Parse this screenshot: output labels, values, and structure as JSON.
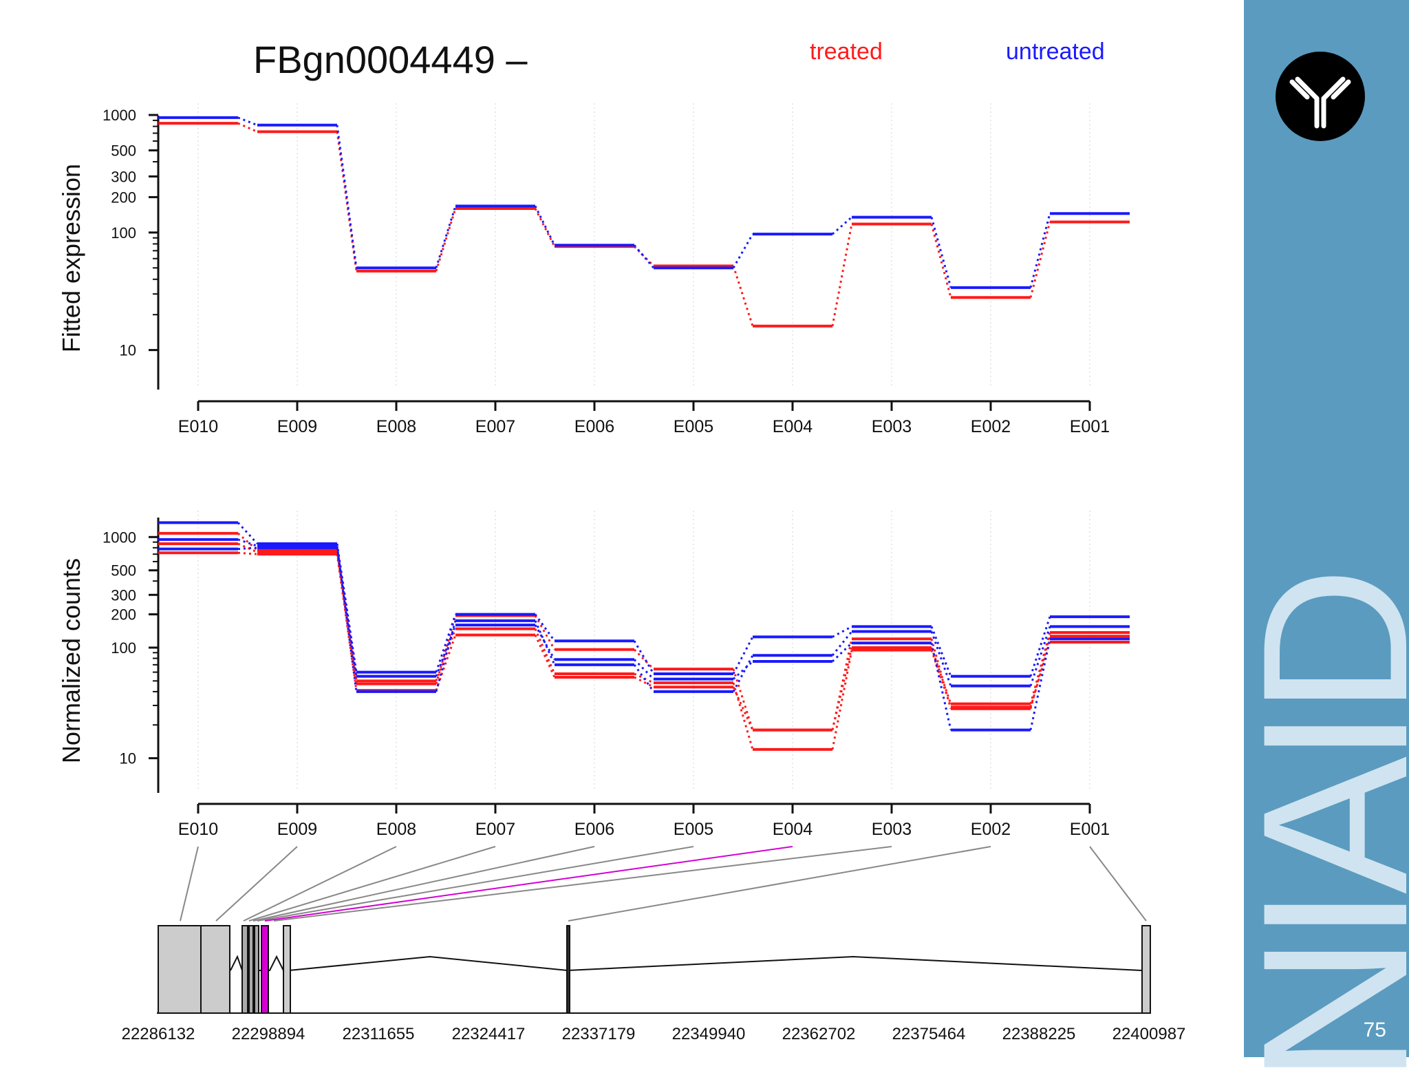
{
  "slide": {
    "number": "75",
    "org_text": "NIAID"
  },
  "colors": {
    "treated": "#ff1a1a",
    "untreated": "#1a1aff",
    "highlight": "#d400d4",
    "sidebar": "#5b9bbf"
  },
  "chart_data": [
    {
      "type": "line",
      "title": "FBgn0004449 –",
      "legend": [
        "treated",
        "untreated"
      ],
      "ylabel": "Fitted expression",
      "yscale": "log",
      "yticks": [
        10,
        100,
        200,
        300,
        500,
        1000
      ],
      "ylim": [
        5,
        1100
      ],
      "categories": [
        "E010",
        "E009",
        "E008",
        "E007",
        "E006",
        "E005",
        "E004",
        "E003",
        "E002",
        "E001"
      ],
      "series": [
        {
          "name": "treated",
          "values": [
            850,
            720,
            47,
            160,
            76,
            52,
            16,
            118,
            28,
            123
          ]
        },
        {
          "name": "untreated",
          "values": [
            950,
            820,
            50,
            168,
            78,
            50,
            97,
            135,
            34,
            145
          ]
        }
      ]
    },
    {
      "type": "line",
      "ylabel": "Normalized counts",
      "yscale": "log",
      "yticks": [
        10,
        100,
        200,
        300,
        500,
        1000
      ],
      "ylim": [
        5,
        1500
      ],
      "categories": [
        "E010",
        "E009",
        "E008",
        "E007",
        "E006",
        "E005",
        "E004",
        "E003",
        "E002",
        "E001"
      ],
      "series": [
        {
          "name": "treated",
          "values": [
            1080,
            760,
            47,
            195,
            96,
            64,
            18,
            100,
            31,
            137
          ]
        },
        {
          "name": "treated",
          "values": [
            870,
            730,
            50,
            148,
            58,
            48,
            12,
            95,
            29,
            112
          ]
        },
        {
          "name": "treated",
          "values": [
            720,
            700,
            41,
            130,
            54,
            44,
            18,
            120,
            28,
            127
          ]
        },
        {
          "name": "untreated",
          "values": [
            1350,
            870,
            60,
            200,
            115,
            58,
            125,
            155,
            55,
            190
          ]
        },
        {
          "name": "untreated",
          "values": [
            950,
            830,
            40,
            175,
            70,
            40,
            85,
            140,
            45,
            155
          ]
        },
        {
          "name": "untreated",
          "values": [
            780,
            800,
            55,
            160,
            78,
            52,
            75,
            110,
            18,
            120
          ]
        }
      ]
    }
  ],
  "gene_model": {
    "coordinates": [
      "22286132",
      "22298894",
      "22311655",
      "22324417",
      "22337179",
      "22349940",
      "22362702",
      "22375464",
      "22388225",
      "22400987"
    ],
    "highlighted_exon": "E004"
  }
}
